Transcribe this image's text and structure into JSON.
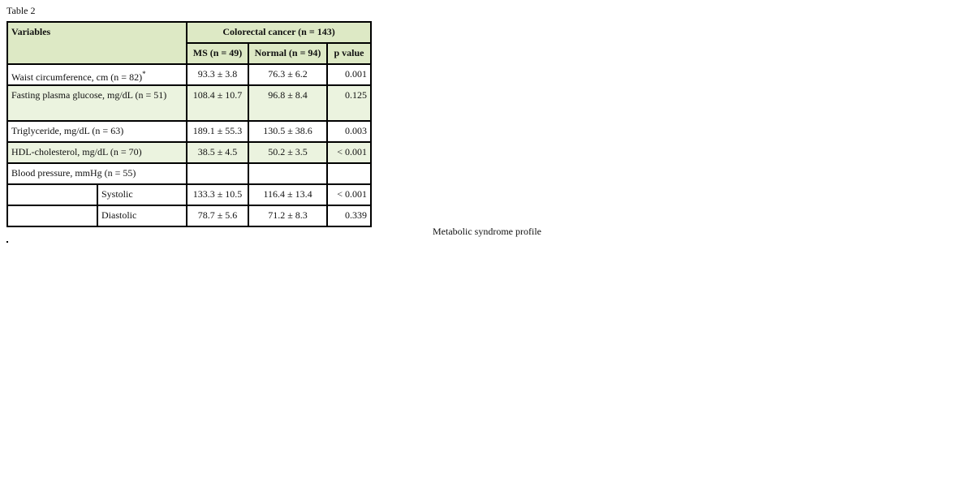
{
  "label": "Table 2",
  "header": {
    "variables": "Variables",
    "group": "Colorectal cancer (n = 143)",
    "cols": [
      "MS (n = 49)",
      "Normal (n = 94)",
      "p value"
    ]
  },
  "rows": [
    {
      "name": "Waist circumference, cm (n = 82)",
      "note": "*",
      "ms": "93.3 ± 3.8",
      "normal": "76.3 ± 6.2",
      "p": "0.001"
    },
    {
      "name": "Fasting plasma glucose, mg/dL (n = 51)",
      "ms": "108.4 ± 10.7",
      "normal": "96.8 ± 8.4",
      "p": "0.125"
    },
    {
      "name": "Triglyceride, mg/dL (n = 63)",
      "ms": "189.1 ± 55.3",
      "normal": "130.5 ± 38.6",
      "p": "0.003"
    },
    {
      "name": "HDL-cholesterol, mg/dL (n = 70)",
      "ms": "38.5 ± 4.5",
      "normal": "50.2 ± 3.5",
      "p": "< 0.001"
    },
    {
      "name": "Blood pressure, mmHg (n = 55)"
    },
    {
      "name": "Systolic",
      "ms": "133.3 ± 10.5",
      "normal": "116.4 ± 13.4",
      "p": "< 0.001"
    },
    {
      "name": "Diastolic",
      "ms": "78.7 ± 5.6",
      "normal": "71.2 ± 8.3",
      "p": "0.339"
    }
  ],
  "caption": "Metabolic syndrome profile"
}
